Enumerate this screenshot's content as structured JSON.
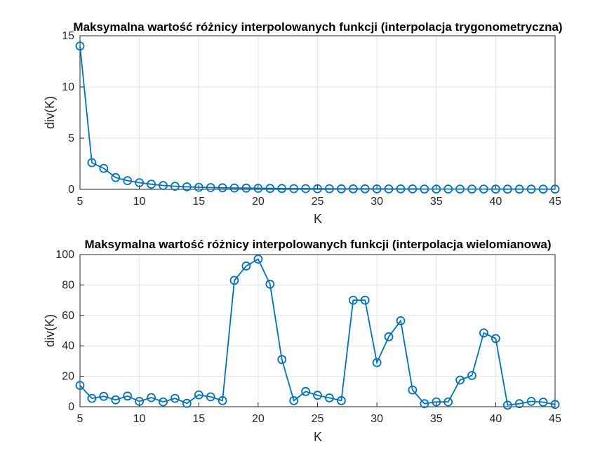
{
  "chart_data": [
    {
      "type": "line",
      "title": "Maksymalna wartość różnicy interpolowanych funkcji (interpolacja trygonometryczna)",
      "xlabel": "K",
      "ylabel": "div(K)",
      "xlim": [
        5,
        45
      ],
      "ylim": [
        0,
        15
      ],
      "xticks": [
        "5",
        "10",
        "15",
        "20",
        "25",
        "30",
        "35",
        "40",
        "45"
      ],
      "yticks": [
        "0",
        "5",
        "10",
        "15"
      ],
      "grid": true,
      "marker": "circle",
      "color": "#0072BD",
      "x": [
        5,
        6,
        7,
        8,
        9,
        10,
        11,
        12,
        13,
        14,
        15,
        16,
        17,
        18,
        19,
        20,
        21,
        22,
        23,
        24,
        25,
        26,
        27,
        28,
        29,
        30,
        31,
        32,
        33,
        34,
        35,
        36,
        37,
        38,
        39,
        40,
        41,
        42,
        43,
        44,
        45
      ],
      "y": [
        14.0,
        2.6,
        2.05,
        1.15,
        0.85,
        0.65,
        0.5,
        0.38,
        0.3,
        0.25,
        0.2,
        0.17,
        0.15,
        0.13,
        0.12,
        0.1,
        0.09,
        0.08,
        0.07,
        0.07,
        0.06,
        0.06,
        0.05,
        0.05,
        0.05,
        0.04,
        0.04,
        0.04,
        0.04,
        0.03,
        0.03,
        0.03,
        0.03,
        0.03,
        0.03,
        0.02,
        0.02,
        0.02,
        0.02,
        0.02,
        0.02
      ]
    },
    {
      "type": "line",
      "title": "Maksymalna wartość różnicy interpolowanych funkcji (interpolacja wielomianowa)",
      "xlabel": "K",
      "ylabel": "div(K)",
      "xlim": [
        5,
        45
      ],
      "ylim": [
        0,
        100
      ],
      "xticks": [
        "5",
        "10",
        "15",
        "20",
        "25",
        "30",
        "35",
        "40",
        "45"
      ],
      "yticks": [
        "0",
        "20",
        "40",
        "60",
        "80",
        "100"
      ],
      "grid": true,
      "marker": "circle",
      "color": "#0072BD",
      "x": [
        5,
        6,
        7,
        8,
        9,
        10,
        11,
        12,
        13,
        14,
        15,
        16,
        17,
        18,
        19,
        20,
        21,
        22,
        23,
        24,
        25,
        26,
        27,
        28,
        29,
        30,
        31,
        32,
        33,
        34,
        35,
        36,
        37,
        38,
        39,
        40,
        41,
        42,
        43,
        44,
        45
      ],
      "y": [
        14,
        5.5,
        6.8,
        4.5,
        7,
        3.5,
        6,
        3.2,
        5.5,
        2.2,
        7.8,
        6.5,
        4,
        83,
        92.5,
        97,
        80.5,
        31,
        4,
        10,
        7.5,
        5.8,
        4,
        70,
        70,
        29,
        46,
        56.5,
        11,
        2,
        3.2,
        3.2,
        17.5,
        20.5,
        48.5,
        44.8,
        1,
        2,
        3.5,
        3,
        1.5
      ]
    }
  ]
}
